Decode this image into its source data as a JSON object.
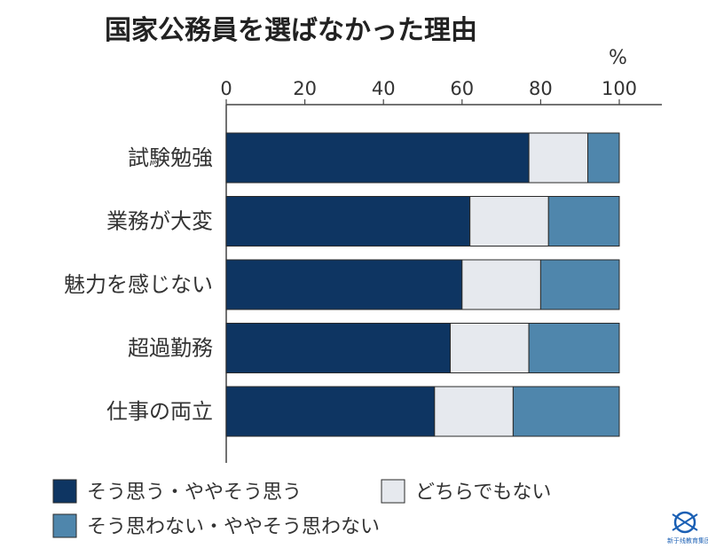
{
  "chart_data": {
    "type": "bar",
    "orientation": "horizontal",
    "stacked": true,
    "title": "国家公務員を選ばなかった理由",
    "unit": "%",
    "xlim": [
      0,
      100
    ],
    "xticks": [
      "0",
      "20",
      "40",
      "60",
      "80",
      "100"
    ],
    "categories": [
      "試験勉強",
      "業務が大変",
      "魅力を感じない",
      "超過勤務",
      "仕事の両立"
    ],
    "series": [
      {
        "name": "そう思う・ややそう思う",
        "color": "#0e3562",
        "values": [
          77,
          62,
          60,
          57,
          53
        ]
      },
      {
        "name": "どちらでもない",
        "color": "#e6e9ee",
        "values": [
          15,
          20,
          20,
          20,
          20
        ]
      },
      {
        "name": "そう思わない・ややそう思わない",
        "color": "#4f86ac",
        "values": [
          8,
          18,
          20,
          23,
          27
        ]
      }
    ],
    "legend_position": "bottom"
  },
  "logo": {
    "text": "新于线教育集团",
    "color": "#1a5fb4"
  }
}
